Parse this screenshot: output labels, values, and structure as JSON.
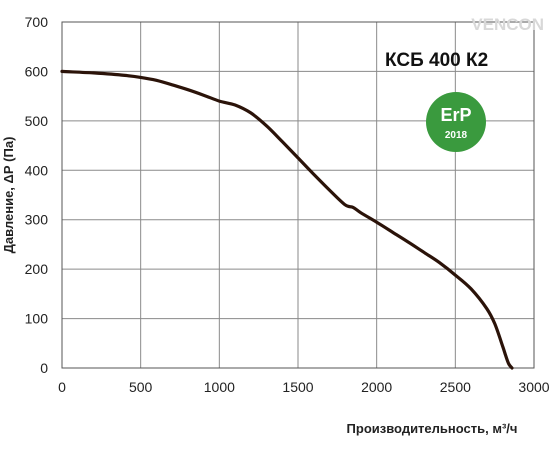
{
  "chart_data": {
    "type": "line",
    "title": "КСБ 400 К2",
    "xlabel": "Производительность,  м³/ч",
    "ylabel": "Давление, ΔР (Па)",
    "xlim": [
      0,
      3000
    ],
    "ylim": [
      0,
      700
    ],
    "xticks": [
      0,
      500,
      1000,
      1500,
      2000,
      2500,
      3000
    ],
    "yticks": [
      0,
      100,
      200,
      300,
      400,
      500,
      600,
      700
    ],
    "grid": true,
    "series": [
      {
        "x": [
          0,
          200,
          400,
          500,
          600,
          700,
          800,
          900,
          1000,
          1100,
          1200,
          1300,
          1400,
          1500,
          1600,
          1700,
          1800,
          1850,
          1900,
          2000,
          2100,
          2200,
          2300,
          2400,
          2500,
          2600,
          2700,
          2750,
          2800,
          2820,
          2840,
          2860
        ],
        "y": [
          600,
          597,
          592,
          588,
          582,
          573,
          563,
          552,
          540,
          532,
          516,
          490,
          458,
          425,
          392,
          360,
          330,
          325,
          314,
          295,
          275,
          255,
          234,
          213,
          188,
          160,
          120,
          90,
          45,
          25,
          8,
          0
        ],
        "color": "#2b1309"
      }
    ]
  },
  "badge": {
    "label": "ErP",
    "year": "2018",
    "color": "#3a9a3e"
  },
  "watermark": {
    "brand": "VENCON"
  }
}
